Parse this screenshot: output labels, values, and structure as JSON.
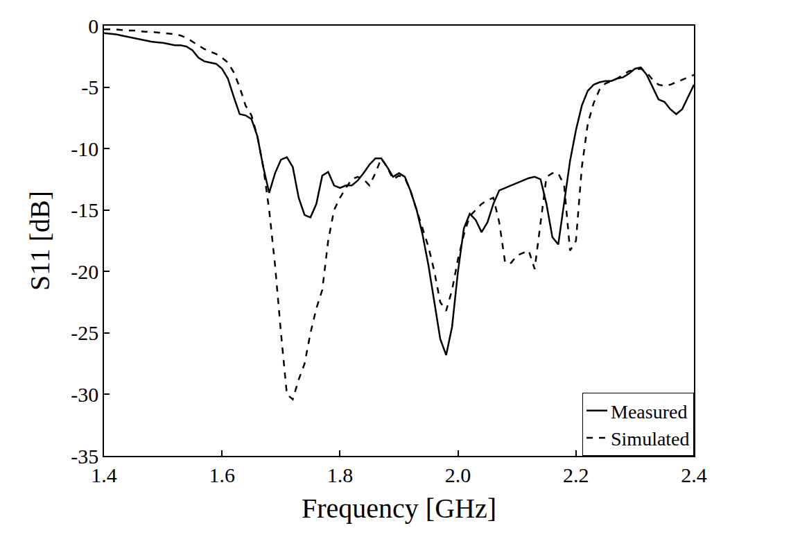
{
  "chart_data": {
    "type": "line",
    "x_label": "Frequency [GHz]",
    "y_label": "S11 [dB]",
    "x": [
      1.4,
      1.41,
      1.42,
      1.43,
      1.44,
      1.45,
      1.46,
      1.47,
      1.48,
      1.49,
      1.5,
      1.51,
      1.52,
      1.53,
      1.54,
      1.55,
      1.56,
      1.57,
      1.58,
      1.59,
      1.6,
      1.61,
      1.62,
      1.63,
      1.64,
      1.65,
      1.66,
      1.67,
      1.68,
      1.69,
      1.7,
      1.71,
      1.72,
      1.73,
      1.74,
      1.75,
      1.76,
      1.77,
      1.78,
      1.79,
      1.8,
      1.81,
      1.82,
      1.83,
      1.84,
      1.85,
      1.86,
      1.87,
      1.88,
      1.89,
      1.9,
      1.91,
      1.92,
      1.93,
      1.94,
      1.95,
      1.96,
      1.97,
      1.98,
      1.99,
      2.0,
      2.01,
      2.02,
      2.03,
      2.04,
      2.05,
      2.06,
      2.07,
      2.08,
      2.09,
      2.1,
      2.11,
      2.12,
      2.13,
      2.14,
      2.15,
      2.16,
      2.17,
      2.18,
      2.19,
      2.2,
      2.21,
      2.22,
      2.23,
      2.24,
      2.25,
      2.26,
      2.27,
      2.28,
      2.29,
      2.3,
      2.31,
      2.32,
      2.33,
      2.34,
      2.35,
      2.36,
      2.37,
      2.38,
      2.39,
      2.4
    ],
    "series": [
      {
        "name": "Measured",
        "color": "#000000",
        "line_style": "solid",
        "values": [
          -0.6,
          -0.65,
          -0.7,
          -0.8,
          -0.9,
          -1.0,
          -1.1,
          -1.2,
          -1.3,
          -1.35,
          -1.4,
          -1.5,
          -1.6,
          -1.6,
          -1.7,
          -2.0,
          -2.6,
          -2.9,
          -3.0,
          -3.1,
          -3.5,
          -4.3,
          -5.8,
          -7.2,
          -7.3,
          -7.6,
          -9.0,
          -11.5,
          -13.6,
          -12.0,
          -10.9,
          -10.7,
          -11.5,
          -14.0,
          -15.4,
          -15.6,
          -14.5,
          -12.2,
          -11.9,
          -13.0,
          -13.2,
          -13.0,
          -13.0,
          -12.6,
          -12.0,
          -11.3,
          -10.8,
          -10.8,
          -11.5,
          -12.3,
          -12.0,
          -12.3,
          -13.5,
          -15.0,
          -17.0,
          -19.5,
          -22.5,
          -25.5,
          -26.8,
          -24.5,
          -20.0,
          -16.5,
          -15.3,
          -15.8,
          -16.8,
          -16.0,
          -14.5,
          -13.4,
          -13.2,
          -13.0,
          -12.8,
          -12.6,
          -12.4,
          -12.3,
          -12.5,
          -14.5,
          -17.2,
          -17.8,
          -14.5,
          -11.0,
          -8.5,
          -6.5,
          -5.3,
          -4.8,
          -4.6,
          -4.5,
          -4.5,
          -4.3,
          -4.2,
          -3.9,
          -3.5,
          -3.4,
          -4.0,
          -5.0,
          -6.0,
          -6.2,
          -6.8,
          -7.2,
          -6.8,
          -5.8,
          -4.8
        ]
      },
      {
        "name": "Simulated",
        "color": "#000000",
        "line_style": "dashed",
        "values": [
          -0.3,
          -0.3,
          -0.3,
          -0.35,
          -0.4,
          -0.4,
          -0.45,
          -0.5,
          -0.5,
          -0.55,
          -0.6,
          -0.65,
          -0.7,
          -0.8,
          -1.0,
          -1.3,
          -1.6,
          -1.9,
          -2.1,
          -2.3,
          -2.6,
          -3.0,
          -3.8,
          -5.0,
          -6.5,
          -7.3,
          -9.0,
          -11.5,
          -15.0,
          -19.5,
          -25.0,
          -30.0,
          -30.4,
          -28.8,
          -27.5,
          -25.0,
          -23.0,
          -21.5,
          -17.5,
          -15.0,
          -14.0,
          -13.2,
          -12.5,
          -12.3,
          -12.5,
          -13.0,
          -12.0,
          -10.8,
          -11.5,
          -12.5,
          -12.2,
          -12.4,
          -13.5,
          -15.0,
          -16.5,
          -18.0,
          -20.0,
          -22.5,
          -23.2,
          -21.5,
          -19.0,
          -17.0,
          -15.5,
          -15.0,
          -14.5,
          -14.2,
          -14.0,
          -16.0,
          -19.3,
          -19.3,
          -18.7,
          -18.5,
          -18.3,
          -19.8,
          -16.0,
          -12.3,
          -12.0,
          -12.0,
          -13.0,
          -18.3,
          -17.5,
          -11.5,
          -8.0,
          -6.3,
          -5.2,
          -4.7,
          -4.5,
          -4.3,
          -4.0,
          -3.7,
          -3.6,
          -3.5,
          -3.8,
          -4.4,
          -4.8,
          -4.9,
          -4.8,
          -4.6,
          -4.4,
          -4.2,
          -4.0
        ]
      }
    ],
    "xlim": [
      1.4,
      2.4
    ],
    "xticks": [
      1.4,
      1.6,
      1.8,
      {
        "value": 2,
        "label": "2.0"
      },
      2.2,
      2.4
    ],
    "ylim": [
      -35,
      0
    ],
    "yticks": [
      -35,
      -30,
      -25,
      -20,
      -15,
      -10,
      -5,
      0
    ],
    "grid": false,
    "legend": "bottom right"
  }
}
